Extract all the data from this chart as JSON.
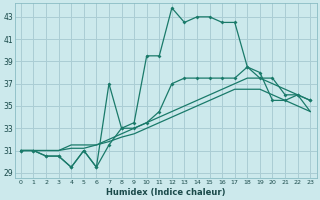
{
  "xlabel": "Humidex (Indice chaleur)",
  "ylabel": "",
  "bg_color": "#cce9ec",
  "grid_color": "#aacdd4",
  "line_color": "#1a7a6a",
  "x_ticks": [
    0,
    1,
    2,
    3,
    4,
    5,
    6,
    7,
    8,
    9,
    10,
    11,
    12,
    13,
    14,
    15,
    16,
    17,
    18,
    19,
    20,
    21,
    22,
    23
  ],
  "y_ticks": [
    29,
    31,
    33,
    35,
    37,
    39,
    41,
    43
  ],
  "xlim": [
    -0.5,
    23.5
  ],
  "ylim": [
    28.5,
    44.2
  ],
  "series": [
    [
      31,
      31,
      30.5,
      30.5,
      29.5,
      31,
      29.5,
      37,
      33,
      33.5,
      39.5,
      39.5,
      43.8,
      42.5,
      43,
      43,
      42.5,
      42.5,
      38.5,
      38.0,
      35.5,
      35.5,
      36.0,
      35.5
    ],
    [
      31,
      31,
      30.5,
      30.5,
      29.5,
      31,
      29.5,
      31.5,
      33,
      33,
      33.5,
      34.5,
      37.0,
      37.5,
      37.5,
      37.5,
      37.5,
      37.5,
      38.5,
      37.5,
      37.5,
      36.0,
      36.0,
      35.5
    ],
    [
      31,
      31,
      31,
      31,
      31.5,
      31.5,
      31.5,
      32,
      32.5,
      33,
      33.5,
      34,
      34.5,
      35,
      35.5,
      36,
      36.5,
      37,
      37.5,
      37.5,
      37.0,
      36.5,
      36.0,
      34.5
    ],
    [
      31,
      31,
      31,
      31,
      31.2,
      31.2,
      31.5,
      31.8,
      32.2,
      32.5,
      33.0,
      33.5,
      34.0,
      34.5,
      35.0,
      35.5,
      36.0,
      36.5,
      36.5,
      36.5,
      36.0,
      35.5,
      35.0,
      34.5
    ]
  ],
  "markers": [
    true,
    true,
    false,
    false
  ]
}
